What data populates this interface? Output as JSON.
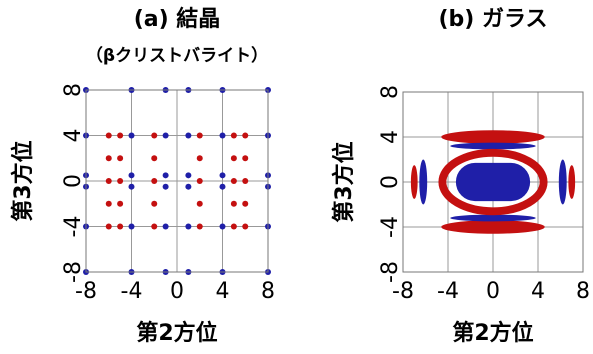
{
  "charts": [
    {
      "type": "scatter",
      "title": "(a) 結晶",
      "subtitle": "（βクリストバライト）",
      "xlabel": "第2方位",
      "ylabel": "第3方位",
      "xlim": [
        -8,
        8
      ],
      "ylim": [
        -8,
        8
      ],
      "xticks": [
        -8,
        -4,
        0,
        4,
        8
      ],
      "yticks": [
        -8,
        -4,
        0,
        4,
        8
      ],
      "grid": true,
      "series": [
        {
          "color": "#1f1fa8",
          "x": [
            -8,
            -8,
            -8,
            -8,
            -8,
            -8,
            -4,
            -4,
            -4,
            -4,
            -4,
            -4,
            -1,
            -1,
            -1,
            -1,
            -1,
            -1,
            1,
            1,
            1,
            1,
            1,
            1,
            4,
            4,
            4,
            4,
            4,
            4,
            8,
            8,
            8,
            8,
            8,
            8
          ],
          "y": [
            8,
            4,
            0.5,
            -0.5,
            -4,
            -8,
            8,
            4,
            0.5,
            -0.5,
            -4,
            -8,
            8,
            4,
            0.5,
            -0.5,
            -4,
            -8,
            8,
            4,
            0.5,
            -0.5,
            -4,
            -8,
            8,
            4,
            0.5,
            -0.5,
            -4,
            -8,
            8,
            4,
            0.5,
            -0.5,
            -4,
            -8
          ]
        },
        {
          "color": "#c41010",
          "x": [
            -6,
            -6,
            -6,
            -6,
            -6,
            -5,
            -5,
            -5,
            -5,
            -5,
            -2,
            -2,
            -2,
            -2,
            -2,
            2,
            2,
            2,
            2,
            2,
            5,
            5,
            5,
            5,
            5,
            6,
            6,
            6,
            6,
            6
          ],
          "y": [
            4,
            2,
            0,
            -2,
            -4,
            4,
            2,
            0,
            -2,
            -4,
            4,
            2,
            0,
            -2,
            -4,
            4,
            2,
            0,
            -2,
            -4,
            4,
            2,
            0,
            -2,
            -4,
            4,
            2,
            0,
            -2,
            -4
          ]
        }
      ]
    },
    {
      "type": "density",
      "title": "(b) ガラス",
      "xlabel": "第2方位",
      "ylabel": "第3方位",
      "xlim": [
        -8,
        8
      ],
      "ylim": [
        -8,
        8
      ],
      "xticks": [
        -8,
        -4,
        0,
        4,
        8
      ],
      "yticks": [
        -8,
        -4,
        0,
        4,
        8
      ],
      "grid": true
    }
  ]
}
